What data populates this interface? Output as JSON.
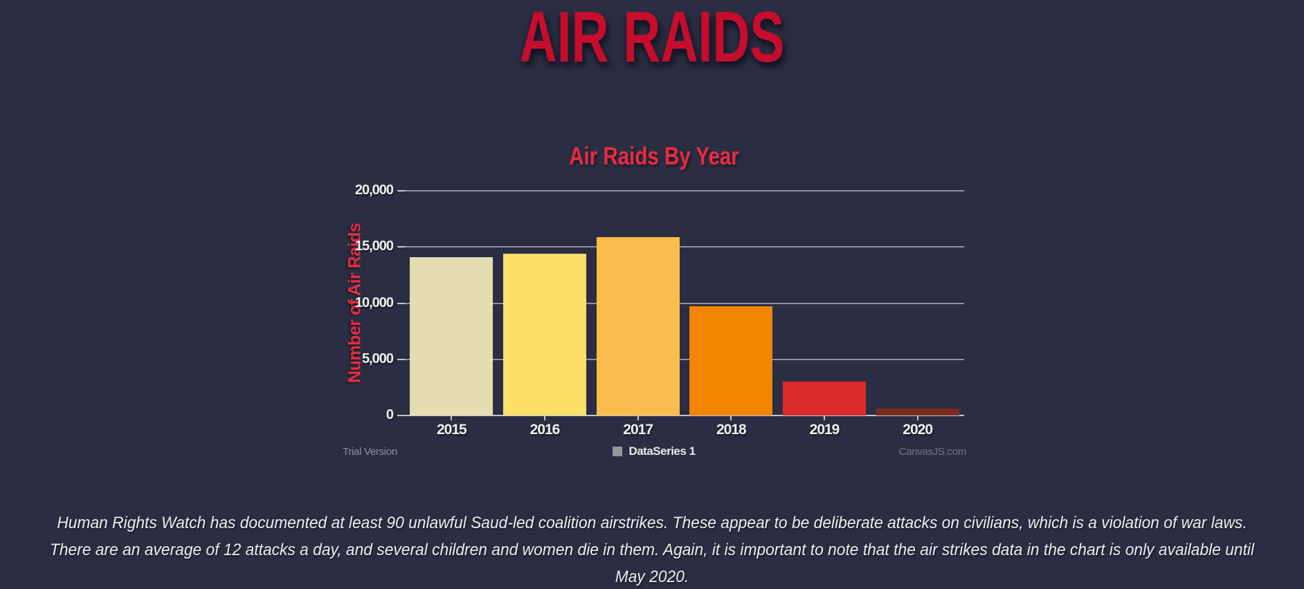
{
  "page": {
    "background_color": "#2b2e42"
  },
  "header": {
    "title": "AIR RAIDS",
    "title_color": "#c60d2d"
  },
  "chart": {
    "title": "Air Raids By Year",
    "title_color": "#e92b43",
    "y_axis_title": "Number of Air Raids",
    "y_axis_title_color": "#e92b43",
    "watermark_left": "Trial Version",
    "watermark_right": "CanvasJS.com",
    "legend": {
      "label": "DataSeries 1",
      "swatch_color": "#94979d"
    }
  },
  "chart_data": {
    "type": "bar",
    "title": "Air Raids By Year",
    "categories": [
      "2015",
      "2016",
      "2017",
      "2018",
      "2019",
      "2020"
    ],
    "values": [
      14100,
      14400,
      15900,
      9700,
      3000,
      600
    ],
    "bar_colors": [
      "#e3ddb1",
      "#fde069",
      "#fabc4c",
      "#f28501",
      "#d92b2b",
      "#7c2c1f"
    ],
    "xlabel": "",
    "ylabel": "Number of Air Raids",
    "ylim": [
      0,
      20000
    ],
    "ytick_interval": 5000,
    "yticks": [
      "20,000",
      "15,000",
      "10,000",
      "5,000",
      "0"
    ],
    "grid": true,
    "legend_position": "bottom-center",
    "legend_entries": [
      "DataSeries 1"
    ]
  },
  "footer": {
    "paragraph": "Human Rights Watch has documented at least 90 unlawful Saud-led coalition airstrikes. These appear to be deliberate attacks on civilians, which is a violation of war laws. There are an average of 12 attacks a day, and several children and women die in them. Again, it is important to note that the air strikes data in the chart is only available until May 2020.",
    "lines": [
      "Human Rights Watch has documented at least 90 unlawful Saud-led coalition airstrikes. These appear to be deliberate attacks on civilians, which is a violation of war laws.",
      "There are an average of 12 attacks a day, and several children and women die in them. Again, it is important to note that the air strikes data in the chart is only available until",
      "May 2020."
    ]
  }
}
